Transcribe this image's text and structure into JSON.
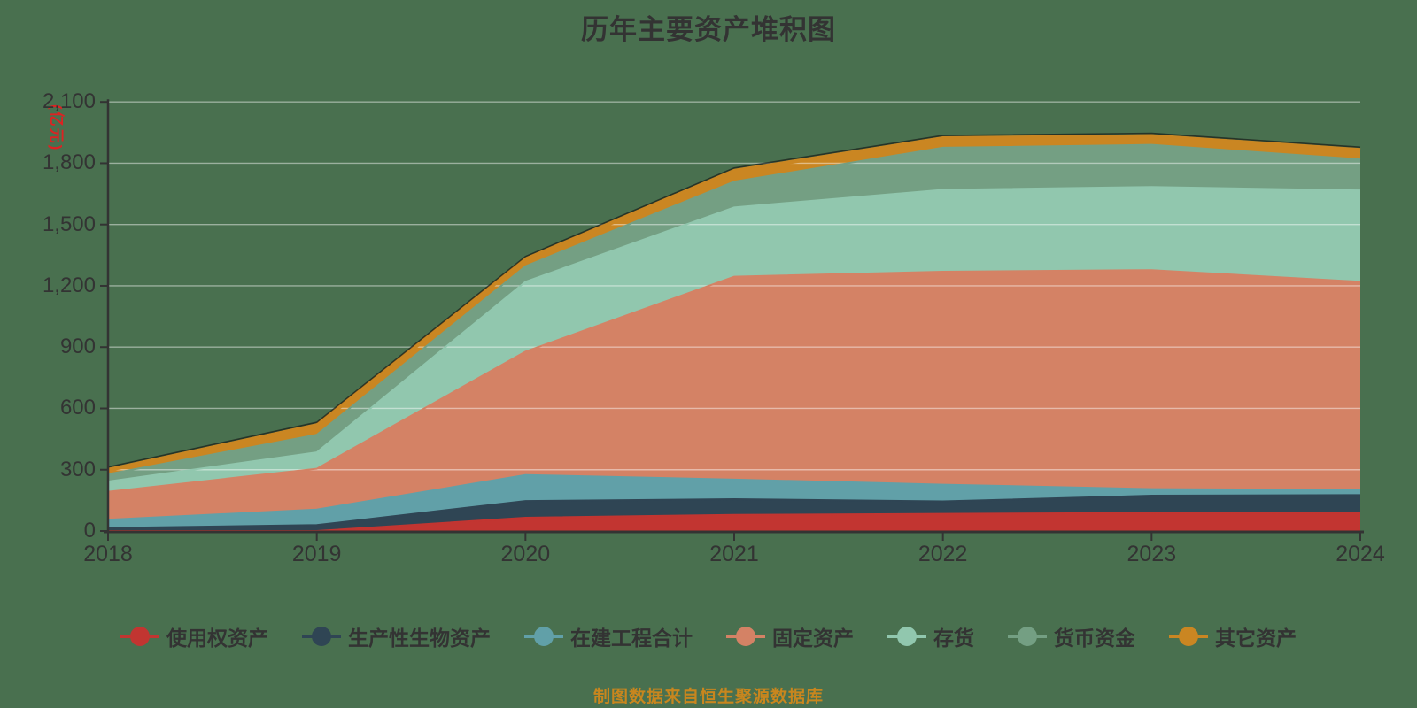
{
  "title": "历年主要资产堆积图",
  "footer": {
    "text": "制图数据来自恒生聚源数据库"
  },
  "colors": {
    "background": "#49704f",
    "text": "#333333",
    "axis": "#333333",
    "gridline": "rgba(255,255,255,0.45)",
    "y_axis_name": "#dd2222",
    "footer_text": "#c8861e",
    "stack_top_edge": "rgba(20,20,20,0.65)"
  },
  "y_axis": {
    "name": "(亿元)",
    "min": 0,
    "max": 2100,
    "step": 300
  },
  "chart_data": {
    "type": "area",
    "stacked": true,
    "title": "历年主要资产堆积图",
    "xlabel": "",
    "ylabel": "(亿元)",
    "ylim": [
      0,
      2100
    ],
    "ytick_step": 300,
    "grid": true,
    "legend_position": "bottom",
    "categories": [
      "2018",
      "2019",
      "2020",
      "2021",
      "2022",
      "2023",
      "2024"
    ],
    "series": [
      {
        "name": "使用权资产",
        "key": "right-of-use-assets",
        "color": "#c23531",
        "values": [
          0,
          0,
          65,
          79,
          84,
          88,
          91
        ]
      },
      {
        "name": "生产性生物资产",
        "key": "productive-biological-assets",
        "color": "#2f4554",
        "values": [
          15,
          29,
          82,
          77,
          61,
          85,
          85
        ]
      },
      {
        "name": "在建工程合计",
        "key": "construction-in-progress",
        "color": "#61a0a8",
        "values": [
          40,
          76,
          127,
          96,
          82,
          32,
          26
        ]
      },
      {
        "name": "固定资产",
        "key": "fixed-assets",
        "color": "#d48265",
        "values": [
          137,
          200,
          604,
          993,
          1042,
          1072,
          1018
        ]
      },
      {
        "name": "存货",
        "key": "inventory",
        "color": "#91c7ae",
        "values": [
          50,
          80,
          342,
          339,
          401,
          407,
          447
        ]
      },
      {
        "name": "货币资金",
        "key": "monetary-funds",
        "color": "#749f83",
        "values": [
          36,
          86,
          76,
          126,
          206,
          206,
          152
        ]
      },
      {
        "name": "其它资产",
        "key": "other-assets",
        "color": "#ca8622",
        "values": [
          21,
          47,
          34,
          53,
          46,
          43,
          46
        ]
      }
    ]
  }
}
